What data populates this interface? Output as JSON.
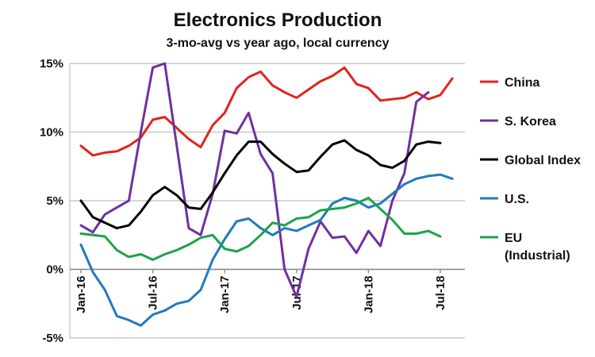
{
  "chart_data": {
    "type": "line",
    "title": "Electronics Production",
    "subtitle": "3-mo-avg vs year ago, local currency",
    "xlabel": "",
    "ylabel": "",
    "ylim": [
      -5,
      15
    ],
    "y_ticks": [
      15,
      10,
      5,
      0,
      -5
    ],
    "y_tick_labels": [
      "15%",
      "10%",
      "5%",
      "0%",
      "-5%"
    ],
    "x_tick_labels": [
      "Jan-16",
      "Jul-16",
      "Jan-17",
      "Jul-17",
      "Jan-18",
      "Jul-18"
    ],
    "x_tick_months": [
      0,
      6,
      12,
      18,
      24,
      30
    ],
    "x": [
      "2016-01",
      "2016-02",
      "2016-03",
      "2016-04",
      "2016-05",
      "2016-06",
      "2016-07",
      "2016-08",
      "2016-09",
      "2016-10",
      "2016-11",
      "2016-12",
      "2017-01",
      "2017-02",
      "2017-03",
      "2017-04",
      "2017-05",
      "2017-06",
      "2017-07",
      "2017-08",
      "2017-09",
      "2017-10",
      "2017-11",
      "2017-12",
      "2018-01",
      "2018-02",
      "2018-03",
      "2018-04",
      "2018-05",
      "2018-06",
      "2018-07",
      "2018-08"
    ],
    "grid": true,
    "legend_position": "right",
    "series": [
      {
        "name": "China",
        "color": "#e0241b",
        "values": [
          9.0,
          8.3,
          8.5,
          8.6,
          9.0,
          9.6,
          10.9,
          11.1,
          10.3,
          9.5,
          8.9,
          10.5,
          11.4,
          13.2,
          14.0,
          14.4,
          13.4,
          12.9,
          12.5,
          13.1,
          13.7,
          14.1,
          14.7,
          13.5,
          13.2,
          12.3,
          12.4,
          12.5,
          12.9,
          12.4,
          12.7,
          13.9
        ]
      },
      {
        "name": "S. Korea",
        "color": "#7030a0",
        "values": [
          3.2,
          2.7,
          4.0,
          4.5,
          5.0,
          10.0,
          14.7,
          15.0,
          9.0,
          3.0,
          2.5,
          5.5,
          10.1,
          9.9,
          11.4,
          8.4,
          7.0,
          0.0,
          -2.0,
          1.5,
          3.5,
          2.3,
          2.4,
          1.2,
          2.8,
          1.7,
          5.0,
          7.0,
          12.2,
          12.9,
          null,
          null
        ]
      },
      {
        "name": "Global Index",
        "color": "#000000",
        "values": [
          5.0,
          3.8,
          3.4,
          3.0,
          3.2,
          4.2,
          5.4,
          6.0,
          5.4,
          4.5,
          4.4,
          5.6,
          7.0,
          8.3,
          9.3,
          9.3,
          8.4,
          7.7,
          7.1,
          7.2,
          8.2,
          9.1,
          9.4,
          8.7,
          8.3,
          7.6,
          7.4,
          7.9,
          9.1,
          9.3,
          9.2,
          null
        ]
      },
      {
        "name": "U.S.",
        "color": "#1f7bbf",
        "values": [
          1.8,
          -0.2,
          -1.5,
          -3.4,
          -3.7,
          -4.1,
          -3.3,
          -3.0,
          -2.5,
          -2.3,
          -1.5,
          0.7,
          2.2,
          3.5,
          3.7,
          3.0,
          2.5,
          3.0,
          2.8,
          3.2,
          3.6,
          4.8,
          5.2,
          5.0,
          4.5,
          4.8,
          5.5,
          6.2,
          6.6,
          6.8,
          6.9,
          6.6
        ]
      },
      {
        "name": "EU\n(Industrial)",
        "color": "#1fa24a",
        "values": [
          2.6,
          2.5,
          2.4,
          1.4,
          0.9,
          1.1,
          0.7,
          1.1,
          1.4,
          1.8,
          2.3,
          2.5,
          1.5,
          1.3,
          1.7,
          2.5,
          3.4,
          3.2,
          3.7,
          3.8,
          4.3,
          4.4,
          4.5,
          4.8,
          5.2,
          4.4,
          3.6,
          2.6,
          2.6,
          2.8,
          2.4,
          null
        ]
      }
    ]
  }
}
